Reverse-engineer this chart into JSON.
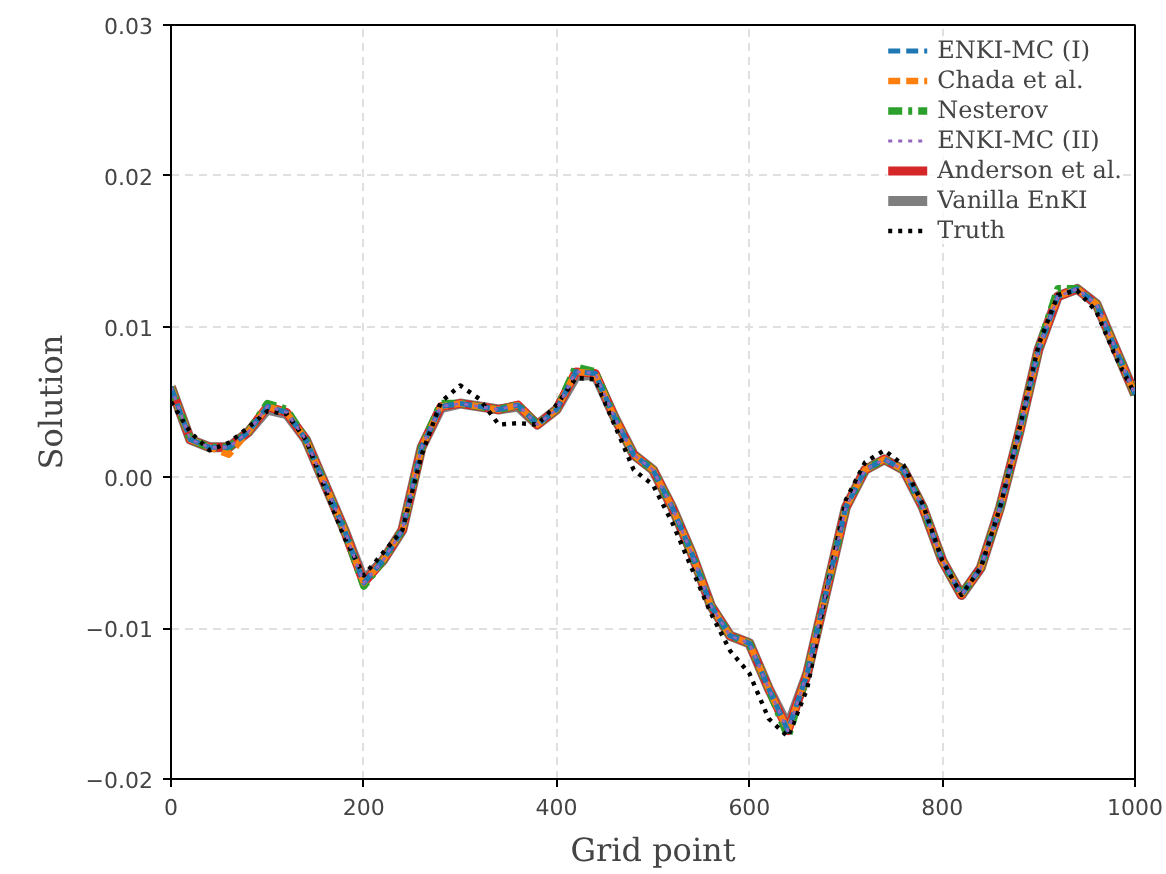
{
  "chart_data": {
    "type": "line",
    "xlabel": "Grid point",
    "ylabel": "Solution",
    "x": [
      0,
      20,
      40,
      60,
      80,
      100,
      120,
      140,
      160,
      180,
      200,
      220,
      240,
      260,
      280,
      300,
      320,
      340,
      360,
      380,
      400,
      420,
      440,
      460,
      480,
      500,
      520,
      540,
      560,
      580,
      600,
      620,
      640,
      660,
      680,
      700,
      720,
      740,
      760,
      780,
      800,
      820,
      840,
      860,
      880,
      900,
      920,
      940,
      960,
      980,
      1000
    ],
    "series": [
      {
        "name": "ENKI-MC (I)",
        "color": "#1f77b4",
        "line_style": "dashed",
        "values": [
          0.006,
          0.0025,
          0.002,
          0.002,
          0.003,
          0.0047,
          0.0043,
          0.0025,
          -0.0005,
          -0.0035,
          -0.007,
          -0.0055,
          -0.0035,
          0.002,
          0.0047,
          0.0049,
          0.0047,
          0.0045,
          0.0048,
          0.0035,
          0.0045,
          0.007,
          0.0069,
          0.004,
          0.0015,
          0.0005,
          -0.002,
          -0.005,
          -0.0085,
          -0.0105,
          -0.011,
          -0.014,
          -0.0168,
          -0.013,
          -0.0075,
          -0.002,
          0.0005,
          0.0012,
          0.0005,
          -0.002,
          -0.0055,
          -0.0078,
          -0.006,
          -0.002,
          0.003,
          0.0085,
          0.012,
          0.0125,
          0.0115,
          0.0085,
          0.0055
        ]
      },
      {
        "name": "Chada et al.",
        "color": "#ff7f0e",
        "line_style": "dashed",
        "values": [
          0.006,
          0.0025,
          0.002,
          0.0015,
          0.003,
          0.0047,
          0.0043,
          0.0025,
          -0.0005,
          -0.0035,
          -0.007,
          -0.0055,
          -0.0035,
          0.002,
          0.0047,
          0.0049,
          0.0047,
          0.0045,
          0.0048,
          0.0035,
          0.0045,
          0.007,
          0.0069,
          0.004,
          0.0015,
          0.0005,
          -0.002,
          -0.005,
          -0.0085,
          -0.0105,
          -0.011,
          -0.014,
          -0.0168,
          -0.013,
          -0.0075,
          -0.002,
          0.0005,
          0.0012,
          0.0005,
          -0.002,
          -0.0055,
          -0.0078,
          -0.006,
          -0.002,
          0.003,
          0.0085,
          0.012,
          0.0125,
          0.0115,
          0.0085,
          0.0055
        ]
      },
      {
        "name": "Nesterov",
        "color": "#2ca02c",
        "line_style": "dashdot",
        "values": [
          0.006,
          0.0025,
          0.002,
          0.002,
          0.003,
          0.0049,
          0.0045,
          0.0025,
          -0.0005,
          -0.0035,
          -0.0072,
          -0.0055,
          -0.0035,
          0.002,
          0.0049,
          0.0049,
          0.0047,
          0.0045,
          0.0048,
          0.0035,
          0.0045,
          0.0073,
          0.007,
          0.004,
          0.0015,
          0.0005,
          -0.002,
          -0.005,
          -0.0085,
          -0.0105,
          -0.011,
          -0.014,
          -0.0172,
          -0.013,
          -0.0075,
          -0.002,
          0.0005,
          0.0012,
          0.0005,
          -0.002,
          -0.0055,
          -0.0078,
          -0.006,
          -0.002,
          0.003,
          0.0085,
          0.0125,
          0.0125,
          0.0115,
          0.0085,
          0.0055
        ]
      },
      {
        "name": "ENKI-MC (II)",
        "color": "#9467bd",
        "line_style": "dotted",
        "values": [
          0.006,
          0.0025,
          0.002,
          0.002,
          0.003,
          0.0047,
          0.0043,
          0.0025,
          -0.0005,
          -0.0035,
          -0.007,
          -0.0055,
          -0.0035,
          0.002,
          0.0047,
          0.0049,
          0.0047,
          0.0045,
          0.0048,
          0.0035,
          0.0045,
          0.007,
          0.0069,
          0.004,
          0.0015,
          0.0005,
          -0.002,
          -0.005,
          -0.0085,
          -0.0105,
          -0.011,
          -0.014,
          -0.0168,
          -0.013,
          -0.0075,
          -0.002,
          0.0005,
          0.0012,
          0.0005,
          -0.002,
          -0.0055,
          -0.0078,
          -0.006,
          -0.002,
          0.003,
          0.0085,
          0.012,
          0.0125,
          0.0115,
          0.0085,
          0.0055
        ]
      },
      {
        "name": "Anderson et al.",
        "color": "#d62728",
        "line_style": "solid",
        "values": [
          0.006,
          0.0025,
          0.002,
          0.002,
          0.003,
          0.0047,
          0.0043,
          0.0025,
          -0.0005,
          -0.0035,
          -0.007,
          -0.0055,
          -0.0035,
          0.002,
          0.0047,
          0.0049,
          0.0047,
          0.0045,
          0.0048,
          0.0035,
          0.0045,
          0.007,
          0.0069,
          0.004,
          0.0015,
          0.0005,
          -0.002,
          -0.005,
          -0.0085,
          -0.0105,
          -0.011,
          -0.014,
          -0.0168,
          -0.013,
          -0.0075,
          -0.002,
          0.0005,
          0.0012,
          0.0005,
          -0.002,
          -0.0055,
          -0.0078,
          -0.006,
          -0.002,
          0.003,
          0.0085,
          0.012,
          0.0125,
          0.0115,
          0.0085,
          0.0055
        ]
      },
      {
        "name": "Vanilla EnKI",
        "color": "#7f7f7f",
        "line_style": "solid",
        "values": [
          0.006,
          0.0025,
          0.002,
          0.002,
          0.003,
          0.0045,
          0.0042,
          0.0025,
          -0.0005,
          -0.0035,
          -0.0068,
          -0.0055,
          -0.0035,
          0.002,
          0.0046,
          0.0049,
          0.0047,
          0.0045,
          0.0047,
          0.0035,
          0.0045,
          0.0067,
          0.0068,
          0.004,
          0.0015,
          0.0005,
          -0.002,
          -0.005,
          -0.0085,
          -0.0105,
          -0.011,
          -0.014,
          -0.0165,
          -0.013,
          -0.0075,
          -0.002,
          0.0005,
          0.0012,
          0.0005,
          -0.002,
          -0.0055,
          -0.0078,
          -0.006,
          -0.002,
          0.003,
          0.0085,
          0.012,
          0.0125,
          0.0115,
          0.0085,
          0.0055
        ]
      },
      {
        "name": "Truth",
        "color": "#000000",
        "line_style": "dotted",
        "values": [
          0.005,
          0.003,
          0.0018,
          0.0023,
          0.0033,
          0.0044,
          0.0042,
          0.0025,
          -0.0008,
          -0.004,
          -0.0065,
          -0.005,
          -0.0035,
          0.0015,
          0.005,
          0.0061,
          0.0052,
          0.0035,
          0.0036,
          0.0035,
          0.0048,
          0.0066,
          0.0065,
          0.0035,
          0.0005,
          -0.0005,
          -0.003,
          -0.006,
          -0.009,
          -0.0115,
          -0.013,
          -0.016,
          -0.0172,
          -0.014,
          -0.0075,
          -0.0015,
          0.001,
          0.0018,
          0.0008,
          -0.0018,
          -0.0055,
          -0.0078,
          -0.006,
          -0.002,
          0.0032,
          0.0088,
          0.0121,
          0.0124,
          0.011,
          0.008,
          0.0055
        ]
      }
    ],
    "xlim": [
      0,
      1000
    ],
    "ylim": [
      -0.02,
      0.03
    ],
    "xticks": [
      0,
      200,
      400,
      600,
      800,
      1000
    ],
    "yticks": [
      {
        "value": -0.02,
        "label": "−0.02"
      },
      {
        "value": -0.01,
        "label": "−0.01"
      },
      {
        "value": 0,
        "label": "0.00"
      },
      {
        "value": 0.01,
        "label": "0.01"
      },
      {
        "value": 0.02,
        "label": "0.02"
      },
      {
        "value": 0.03,
        "label": "0.03"
      }
    ],
    "grid": true,
    "legend": "top right"
  }
}
